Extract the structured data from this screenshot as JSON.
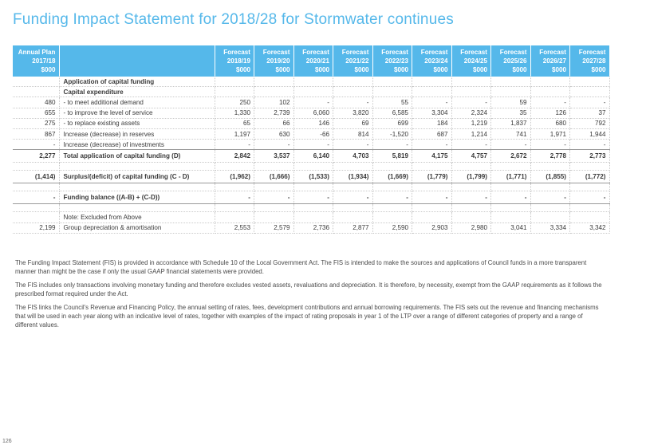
{
  "title": "Funding Impact Statement for 2018/28 for Stormwater continues",
  "columns": [
    [
      "Annual Plan",
      "2017/18",
      "$000"
    ],
    [
      "Forecast",
      "2018/19",
      "$000"
    ],
    [
      "Forecast",
      "2019/20",
      "$000"
    ],
    [
      "Forecast",
      "2020/21",
      "$000"
    ],
    [
      "Forecast",
      "2021/22",
      "$000"
    ],
    [
      "Forecast",
      "2022/23",
      "$000"
    ],
    [
      "Forecast",
      "2023/24",
      "$000"
    ],
    [
      "Forecast",
      "2024/25",
      "$000"
    ],
    [
      "Forecast",
      "2025/26",
      "$000"
    ],
    [
      "Forecast",
      "2026/27",
      "$000"
    ],
    [
      "Forecast",
      "2027/28",
      "$000"
    ]
  ],
  "rows": [
    {
      "label": "Application of capital funding",
      "plan": "",
      "values": [
        "",
        "",
        "",
        "",
        "",
        "",
        "",
        "",
        "",
        ""
      ],
      "style": "bold"
    },
    {
      "label": "Capital expenditure",
      "plan": "",
      "values": [
        "",
        "",
        "",
        "",
        "",
        "",
        "",
        "",
        "",
        ""
      ],
      "style": "bold"
    },
    {
      "label": "- to meet additional demand",
      "plan": "480",
      "values": [
        "250",
        "102",
        "-",
        "-",
        "55",
        "-",
        "-",
        "59",
        "-",
        "-"
      ],
      "style": ""
    },
    {
      "label": "- to improve the level of service",
      "plan": "655",
      "values": [
        "1,330",
        "2,739",
        "6,060",
        "3,820",
        "6,585",
        "3,304",
        "2,324",
        "35",
        "126",
        "37"
      ],
      "style": ""
    },
    {
      "label": "- to replace existing assets",
      "plan": "275",
      "values": [
        "65",
        "66",
        "146",
        "69",
        "699",
        "184",
        "1,219",
        "1,837",
        "680",
        "792"
      ],
      "style": ""
    },
    {
      "label": "Increase (decrease) in reserves",
      "plan": "867",
      "values": [
        "1,197",
        "630",
        "-66",
        "814",
        "-1,520",
        "687",
        "1,214",
        "741",
        "1,971",
        "1,944"
      ],
      "style": ""
    },
    {
      "label": "Increase (decrease) of investments",
      "plan": "-",
      "values": [
        "-",
        "-",
        "-",
        "-",
        "-",
        "-",
        "-",
        "-",
        "-",
        "-"
      ],
      "style": "strong"
    },
    {
      "label": "Total application of capital funding (D)",
      "plan": "2,277",
      "values": [
        "2,842",
        "3,537",
        "6,140",
        "4,703",
        "5,819",
        "4,175",
        "4,757",
        "2,672",
        "2,778",
        "2,773"
      ],
      "style": "bold tall"
    },
    {
      "label": "",
      "plan": "",
      "values": [
        "",
        "",
        "",
        "",
        "",
        "",
        "",
        "",
        "",
        ""
      ],
      "style": "gap"
    },
    {
      "label": "Surplus/(deficit) of capital funding (C - D)",
      "plan": "(1,414)",
      "values": [
        "(1,962)",
        "(1,666)",
        "(1,533)",
        "(1,934)",
        "(1,669)",
        "(1,779)",
        "(1,799)",
        "(1,771)",
        "(1,855)",
        "(1,772)"
      ],
      "style": "bold tall strong"
    },
    {
      "label": "",
      "plan": "",
      "values": [
        "",
        "",
        "",
        "",
        "",
        "",
        "",
        "",
        "",
        ""
      ],
      "style": "gap"
    },
    {
      "label": "Funding balance ((A-B) + (C-D))",
      "plan": "-",
      "values": [
        "-",
        "-",
        "-",
        "-",
        "-",
        "-",
        "-",
        "-",
        "-",
        "-"
      ],
      "style": "bold tall strong"
    },
    {
      "label": "",
      "plan": "",
      "values": [
        "",
        "",
        "",
        "",
        "",
        "",
        "",
        "",
        "",
        ""
      ],
      "style": "gap"
    },
    {
      "label": "Note: Excluded from Above",
      "plan": "",
      "values": [
        "",
        "",
        "",
        "",
        "",
        "",
        "",
        "",
        "",
        ""
      ],
      "style": ""
    },
    {
      "label": "Group depreciation & amortisation",
      "plan": "2,199",
      "values": [
        "2,553",
        "2,579",
        "2,736",
        "2,877",
        "2,590",
        "2,903",
        "2,980",
        "3,041",
        "3,334",
        "3,342"
      ],
      "style": ""
    }
  ],
  "notes": [
    "The Funding Impact Statement (FIS) is provided in accordance with Schedule 10 of the Local Government Act. The FIS is intended to make the sources and applications of Council funds in a more transparent manner than might be the case if only the usual GAAP financial statements were provided.",
    "The FIS includes only transactions involving monetary funding and therefore excludes vested assets, revaluations and depreciation.  It is therefore, by necessity, exempt from the GAAP requirements as it follows the prescribed format required under the Act.",
    "The FIS links the Council's Revenue and Financing Policy, the annual setting of rates, fees, development contributions and annual borrowing requirements.  The FIS sets out the revenue and financing mechanisms that will be used in each year along with an indicative level of rates, together with examples of the impact of rating proposals in year 1 of the LTP over a range of different categories of property and a range of different values."
  ],
  "page_number": "126",
  "colors": {
    "accent": "#55b8ea",
    "text": "#3a3a3a"
  }
}
